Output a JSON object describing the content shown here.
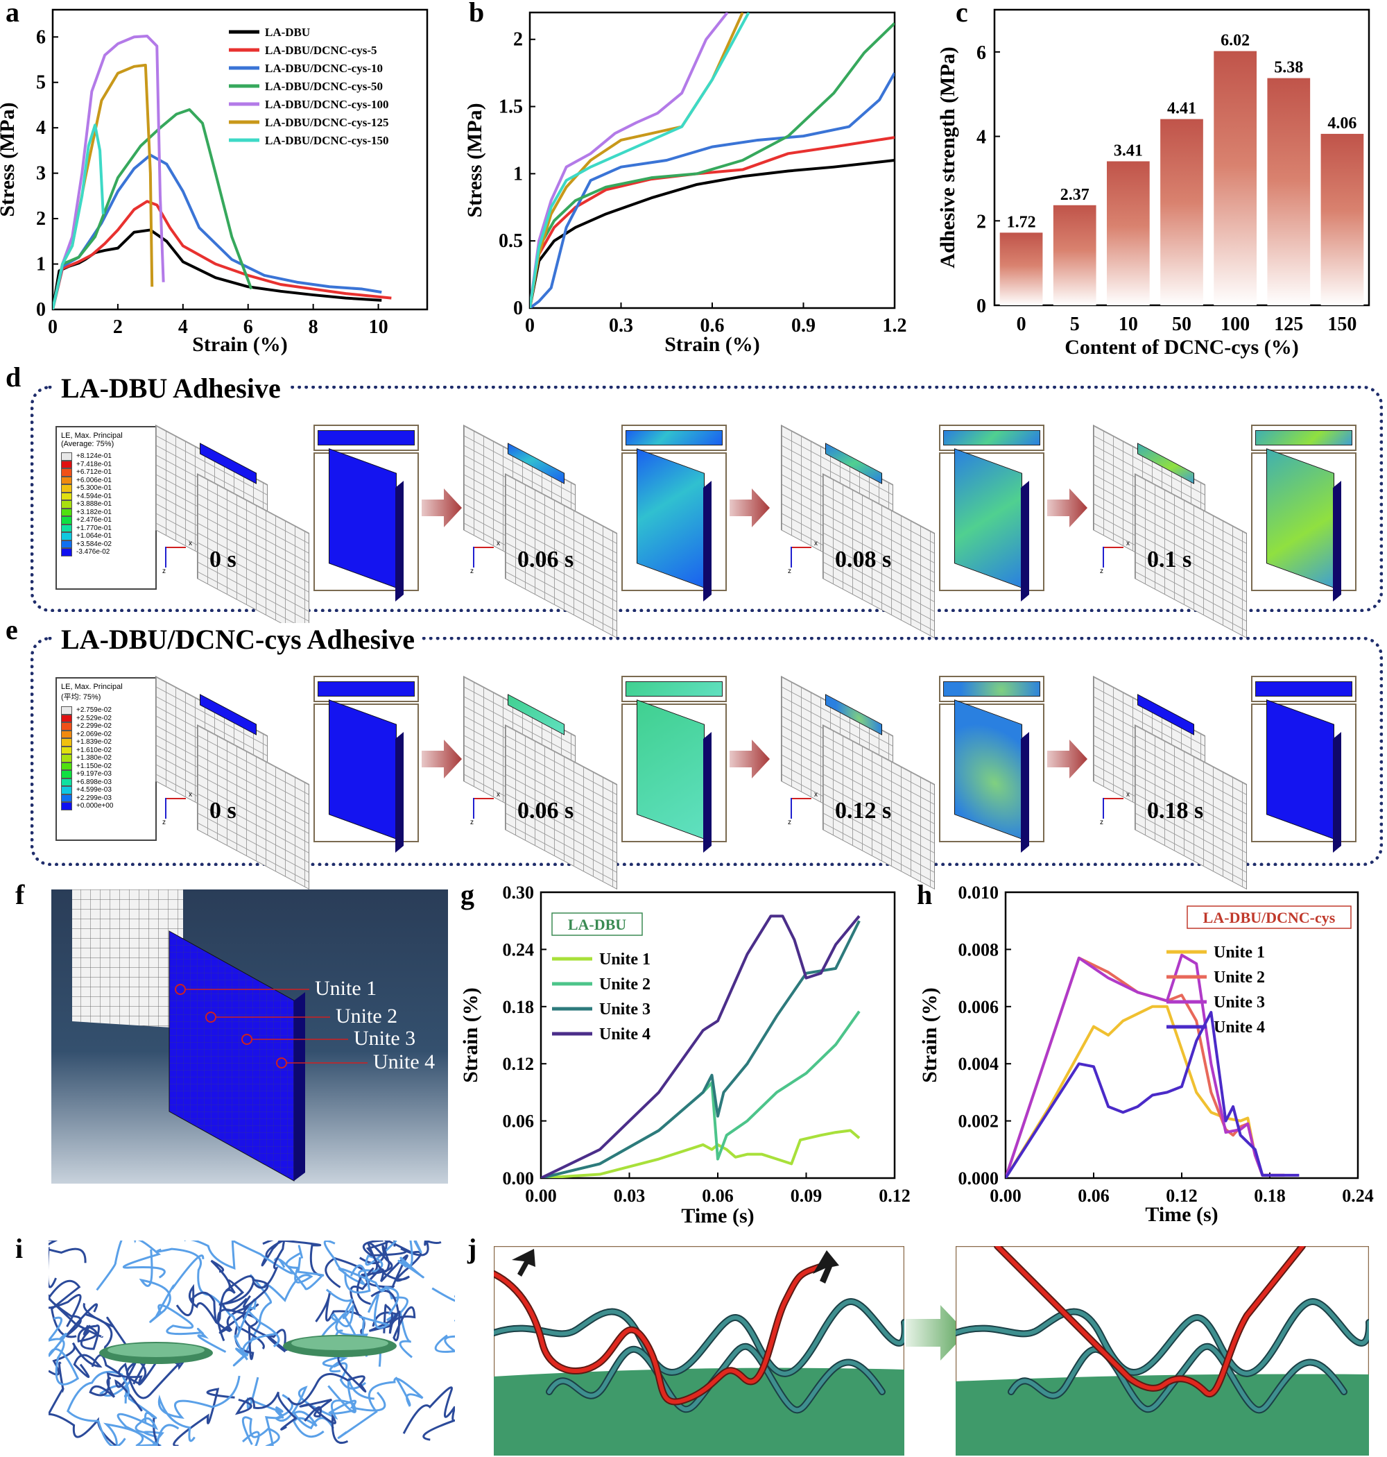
{
  "panel_labels": {
    "a": "a",
    "b": "b",
    "c": "c",
    "d": "d",
    "e": "e",
    "f": "f",
    "g": "g",
    "h": "h",
    "i": "i",
    "j": "j"
  },
  "chart_data": [
    {
      "id": "a",
      "type": "line",
      "xlabel": "Strain (%)",
      "ylabel": "Stress (MPa)",
      "xlim": [
        0,
        11.5
      ],
      "ylim": [
        0,
        6.6
      ],
      "xticks": [
        0,
        2,
        4,
        6,
        8,
        10
      ],
      "yticks": [
        0,
        1,
        2,
        3,
        4,
        5,
        6
      ],
      "legend_position": "top-right",
      "series": [
        {
          "name": "LA-DBU",
          "color": "#000000",
          "x": [
            0,
            0.2,
            0.5,
            0.8,
            1.0,
            1.3,
            1.6,
            2.0,
            2.5,
            3.0,
            3.5,
            4.0,
            5.0,
            6.0,
            7.0,
            8.0,
            9.0,
            10.1
          ],
          "y": [
            0,
            0.85,
            0.95,
            1.02,
            1.1,
            1.25,
            1.3,
            1.35,
            1.7,
            1.75,
            1.5,
            1.05,
            0.7,
            0.5,
            0.4,
            0.32,
            0.25,
            0.2
          ]
        },
        {
          "name": "LA-DBU/DCNC-cys-5",
          "color": "#e8312f",
          "x": [
            0,
            0.3,
            0.8,
            1.2,
            1.6,
            2.0,
            2.5,
            2.9,
            3.2,
            3.6,
            4.0,
            5.0,
            6.0,
            7.0,
            8.0,
            9.0,
            10.4
          ],
          "y": [
            0,
            0.9,
            1.05,
            1.2,
            1.45,
            1.75,
            2.2,
            2.38,
            2.3,
            1.8,
            1.4,
            1.0,
            0.75,
            0.55,
            0.45,
            0.35,
            0.25
          ]
        },
        {
          "name": "LA-DBU/DCNC-cys-10",
          "color": "#3a74d6",
          "x": [
            0,
            0.3,
            0.8,
            1.5,
            2.0,
            2.5,
            3.0,
            3.5,
            4.0,
            4.5,
            5.5,
            6.5,
            7.5,
            8.5,
            9.5,
            10.1
          ],
          "y": [
            0,
            0.95,
            1.15,
            1.9,
            2.6,
            3.1,
            3.4,
            3.2,
            2.6,
            1.8,
            1.1,
            0.75,
            0.6,
            0.5,
            0.45,
            0.38
          ]
        },
        {
          "name": "LA-DBU/DCNC-cys-50",
          "color": "#36a85c",
          "x": [
            0,
            0.3,
            0.8,
            1.3,
            2.0,
            2.7,
            3.3,
            3.8,
            4.2,
            4.6,
            5.0,
            5.5,
            6.1
          ],
          "y": [
            0,
            1.0,
            1.15,
            1.6,
            2.9,
            3.6,
            4.0,
            4.3,
            4.4,
            4.1,
            3.0,
            1.6,
            0.45
          ]
        },
        {
          "name": "LA-DBU/DCNC-cys-100",
          "color": "#b37ae8",
          "x": [
            0,
            0.3,
            0.6,
            0.9,
            1.2,
            1.6,
            2.0,
            2.5,
            2.9,
            3.2,
            3.3,
            3.4
          ],
          "y": [
            0,
            1.0,
            1.6,
            3.0,
            4.8,
            5.6,
            5.85,
            6.0,
            6.02,
            5.8,
            2.5,
            0.6
          ]
        },
        {
          "name": "LA-DBU/DCNC-cys-125",
          "color": "#c8981a",
          "x": [
            0,
            0.3,
            0.6,
            1.0,
            1.5,
            2.0,
            2.5,
            2.85,
            3.0,
            3.05
          ],
          "y": [
            0,
            1.0,
            1.4,
            2.9,
            4.6,
            5.2,
            5.35,
            5.38,
            3.0,
            0.5
          ]
        },
        {
          "name": "LA-DBU/DCNC-cys-150",
          "color": "#3dd9c6",
          "x": [
            0,
            0.3,
            0.6,
            0.9,
            1.1,
            1.3,
            1.45,
            1.55
          ],
          "y": [
            0,
            1.0,
            1.4,
            2.5,
            3.6,
            4.06,
            3.5,
            2.1
          ]
        }
      ]
    },
    {
      "id": "b",
      "type": "line",
      "xlabel": "Strain (%)",
      "ylabel": "Stress (MPa)",
      "xlim": [
        0,
        1.2
      ],
      "ylim": [
        0,
        2.2
      ],
      "xticks": [
        0.0,
        0.3,
        0.6,
        0.9,
        1.2
      ],
      "yticks": [
        0.0,
        0.5,
        1.0,
        1.5,
        2.0
      ],
      "series": [
        {
          "name": "LA-DBU",
          "color": "#000000",
          "x": [
            0,
            0.03,
            0.08,
            0.15,
            0.25,
            0.4,
            0.55,
            0.7,
            0.85,
            1.0,
            1.2
          ],
          "y": [
            0,
            0.35,
            0.5,
            0.6,
            0.7,
            0.82,
            0.92,
            0.98,
            1.02,
            1.05,
            1.1
          ]
        },
        {
          "name": "LA-DBU/DCNC-cys-5",
          "color": "#e8312f",
          "x": [
            0,
            0.03,
            0.08,
            0.15,
            0.25,
            0.4,
            0.55,
            0.7,
            0.85,
            1.0,
            1.2
          ],
          "y": [
            0,
            0.4,
            0.6,
            0.75,
            0.88,
            0.96,
            1.0,
            1.03,
            1.15,
            1.2,
            1.27
          ]
        },
        {
          "name": "LA-DBU/DCNC-cys-10",
          "color": "#3a74d6",
          "x": [
            0,
            0.03,
            0.07,
            0.12,
            0.2,
            0.3,
            0.45,
            0.6,
            0.75,
            0.9,
            1.05,
            1.15,
            1.2
          ],
          "y": [
            0,
            0.05,
            0.15,
            0.6,
            0.95,
            1.05,
            1.1,
            1.2,
            1.25,
            1.28,
            1.35,
            1.55,
            1.75
          ]
        },
        {
          "name": "LA-DBU/DCNC-cys-50",
          "color": "#36a85c",
          "x": [
            0,
            0.03,
            0.08,
            0.15,
            0.25,
            0.4,
            0.55,
            0.7,
            0.85,
            1.0,
            1.1,
            1.2
          ],
          "y": [
            0,
            0.45,
            0.65,
            0.8,
            0.9,
            0.97,
            1.0,
            1.1,
            1.28,
            1.6,
            1.9,
            2.12
          ]
        },
        {
          "name": "LA-DBU/DCNC-cys-100",
          "color": "#b37ae8",
          "x": [
            0,
            0.03,
            0.07,
            0.12,
            0.2,
            0.28,
            0.35,
            0.42,
            0.5,
            0.58,
            0.65
          ],
          "y": [
            0,
            0.5,
            0.8,
            1.05,
            1.15,
            1.3,
            1.38,
            1.45,
            1.6,
            2.0,
            2.2
          ]
        },
        {
          "name": "LA-DBU/DCNC-cys-125",
          "color": "#c8981a",
          "x": [
            0,
            0.03,
            0.07,
            0.12,
            0.2,
            0.3,
            0.4,
            0.5,
            0.6,
            0.7
          ],
          "y": [
            0,
            0.4,
            0.7,
            0.9,
            1.1,
            1.25,
            1.3,
            1.35,
            1.7,
            2.2
          ]
        },
        {
          "name": "LA-DBU/DCNC-cys-150",
          "color": "#3dd9c6",
          "x": [
            0,
            0.03,
            0.07,
            0.12,
            0.2,
            0.3,
            0.4,
            0.5,
            0.6,
            0.72
          ],
          "y": [
            0,
            0.45,
            0.75,
            0.95,
            1.05,
            1.15,
            1.25,
            1.35,
            1.7,
            2.2
          ]
        }
      ]
    },
    {
      "id": "c",
      "type": "bar",
      "xlabel": "Content of DCNC-cys (%)",
      "ylabel": "Adhesive strength (MPa)",
      "categories": [
        "0",
        "5",
        "10",
        "50",
        "100",
        "125",
        "150"
      ],
      "values": [
        1.72,
        2.37,
        3.41,
        4.41,
        6.02,
        5.38,
        4.06
      ],
      "value_labels": [
        "1.72",
        "2.37",
        "3.41",
        "4.41",
        "6.02",
        "5.38",
        "4.06"
      ],
      "ylim": [
        0,
        7
      ],
      "yticks": [
        0,
        2,
        4,
        6
      ],
      "bar_color": "#c0544a"
    },
    {
      "id": "g",
      "type": "line",
      "legend_title": "LA-DBU",
      "legend_title_color": "#3a8a52",
      "xlabel": "Time (s)",
      "ylabel": "Strain (%)",
      "xlim": [
        0,
        0.12
      ],
      "ylim": [
        0,
        0.3
      ],
      "xticks": [
        "0.00",
        "0.03",
        "0.06",
        "0.09",
        "0.12"
      ],
      "xtick_values": [
        0,
        0.03,
        0.06,
        0.09,
        0.12
      ],
      "yticks": [
        "0.00",
        "0.06",
        "0.12",
        "0.18",
        "0.24",
        "0.30"
      ],
      "ytick_values": [
        0,
        0.06,
        0.12,
        0.18,
        0.24,
        0.3
      ],
      "series": [
        {
          "name": "Unite 1",
          "color": "#a8e03a",
          "x": [
            0,
            0.02,
            0.04,
            0.055,
            0.058,
            0.06,
            0.063,
            0.066,
            0.07,
            0.075,
            0.08,
            0.085,
            0.088,
            0.095,
            0.1,
            0.105,
            0.108
          ],
          "y": [
            0,
            0.004,
            0.02,
            0.035,
            0.03,
            0.035,
            0.03,
            0.022,
            0.025,
            0.025,
            0.02,
            0.015,
            0.04,
            0.045,
            0.048,
            0.05,
            0.042
          ]
        },
        {
          "name": "Unite 2",
          "color": "#4cc48a",
          "x": [
            0,
            0.02,
            0.04,
            0.055,
            0.058,
            0.06,
            0.063,
            0.07,
            0.08,
            0.085,
            0.09,
            0.1,
            0.108
          ],
          "y": [
            0,
            0.015,
            0.05,
            0.09,
            0.1,
            0.02,
            0.045,
            0.06,
            0.09,
            0.1,
            0.11,
            0.14,
            0.175
          ]
        },
        {
          "name": "Unite 3",
          "color": "#2d7a7c",
          "x": [
            0,
            0.02,
            0.04,
            0.055,
            0.058,
            0.06,
            0.062,
            0.07,
            0.08,
            0.09,
            0.1,
            0.108
          ],
          "y": [
            0,
            0.015,
            0.05,
            0.09,
            0.108,
            0.065,
            0.09,
            0.12,
            0.17,
            0.215,
            0.22,
            0.27
          ]
        },
        {
          "name": "Unite 4",
          "color": "#4b2e8a",
          "x": [
            0,
            0.02,
            0.04,
            0.055,
            0.06,
            0.065,
            0.07,
            0.078,
            0.082,
            0.086,
            0.09,
            0.095,
            0.1,
            0.108
          ],
          "y": [
            0,
            0.03,
            0.09,
            0.155,
            0.165,
            0.2,
            0.235,
            0.275,
            0.275,
            0.25,
            0.21,
            0.215,
            0.245,
            0.275
          ]
        }
      ]
    },
    {
      "id": "h",
      "type": "line",
      "legend_title": "LA-DBU/DCNC-cys",
      "legend_title_color": "#c0392b",
      "xlabel": "Time (s)",
      "ylabel": "Strain (%)",
      "xlim": [
        0,
        0.24
      ],
      "ylim": [
        0,
        0.01
      ],
      "xticks": [
        "0.00",
        "0.06",
        "0.12",
        "0.18",
        "0.24"
      ],
      "xtick_values": [
        0,
        0.06,
        0.12,
        0.18,
        0.24
      ],
      "yticks": [
        "0.000",
        "0.002",
        "0.004",
        "0.006",
        "0.008",
        "0.010"
      ],
      "ytick_values": [
        0,
        0.002,
        0.004,
        0.006,
        0.008,
        0.01
      ],
      "series": [
        {
          "name": "Unite 1",
          "color": "#f0c030",
          "x": [
            0,
            0.03,
            0.06,
            0.07,
            0.08,
            0.1,
            0.11,
            0.12,
            0.13,
            0.14,
            0.15,
            0.16,
            0.165,
            0.17,
            0.175,
            0.19
          ],
          "y": [
            0,
            0.0025,
            0.0053,
            0.005,
            0.0055,
            0.006,
            0.006,
            0.0045,
            0.003,
            0.0023,
            0.0021,
            0.002,
            0.0021,
            0.0008,
            0.0001,
            0.0001
          ]
        },
        {
          "name": "Unite 2",
          "color": "#e8685a",
          "x": [
            0,
            0.05,
            0.07,
            0.09,
            0.11,
            0.12,
            0.13,
            0.14,
            0.15,
            0.155,
            0.16,
            0.165,
            0.17,
            0.175,
            0.19
          ],
          "y": [
            0,
            0.0077,
            0.0072,
            0.0065,
            0.0062,
            0.0064,
            0.0055,
            0.003,
            0.0017,
            0.0015,
            0.0018,
            0.0019,
            0.0008,
            0.0001,
            0.0001
          ]
        },
        {
          "name": "Unite 3",
          "color": "#b03ac8",
          "x": [
            0,
            0.05,
            0.07,
            0.09,
            0.11,
            0.12,
            0.13,
            0.14,
            0.15,
            0.16,
            0.165,
            0.17,
            0.175,
            0.19
          ],
          "y": [
            0,
            0.0077,
            0.007,
            0.0065,
            0.0062,
            0.0078,
            0.0075,
            0.004,
            0.0016,
            0.0017,
            0.0019,
            0.0008,
            0.0001,
            0.0001
          ]
        },
        {
          "name": "Unite 4",
          "color": "#4a2ac8",
          "x": [
            0,
            0.05,
            0.06,
            0.07,
            0.08,
            0.09,
            0.1,
            0.11,
            0.12,
            0.13,
            0.14,
            0.15,
            0.155,
            0.16,
            0.17,
            0.175,
            0.2
          ],
          "y": [
            0,
            0.004,
            0.0039,
            0.0025,
            0.0023,
            0.0025,
            0.0029,
            0.003,
            0.0032,
            0.0048,
            0.0058,
            0.002,
            0.0025,
            0.0015,
            0.001,
            0.0001,
            0.0001
          ]
        }
      ]
    }
  ],
  "panel_d": {
    "title": "LA-DBU Adhesive",
    "legend": {
      "header": [
        "LE, Max. Principal",
        "(Average: 75%)"
      ],
      "values": [
        "+8.124e-01",
        "+7.418e-01",
        "+6.712e-01",
        "+6.006e-01",
        "+5.300e-01",
        "+4.594e-01",
        "+3.888e-01",
        "+3.182e-01",
        "+2.476e-01",
        "+1.770e-01",
        "+1.064e-01",
        "+3.584e-02",
        "-3.476e-02"
      ]
    },
    "times": [
      "0 s",
      "0.06 s",
      "0.08 s",
      "0.1 s"
    ]
  },
  "panel_e": {
    "title": "LA-DBU/DCNC-cys Adhesive",
    "legend": {
      "header": [
        "LE, Max. Principal",
        "(平均: 75%)"
      ],
      "values": [
        "+2.759e-02",
        "+2.529e-02",
        "+2.299e-02",
        "+2.069e-02",
        "+1.839e-02",
        "+1.610e-02",
        "+1.380e-02",
        "+1.150e-02",
        "+9.197e-03",
        "+6.898e-03",
        "+4.599e-03",
        "+2.299e-03",
        "+0.000e+00"
      ]
    },
    "times": [
      "0 s",
      "0.06 s",
      "0.12 s",
      "0.18 s"
    ]
  },
  "axis_letters": {
    "x": "x",
    "z": "z"
  },
  "panel_f": {
    "labels": [
      "Unite 1",
      "Unite 2",
      "Unite 3",
      "Unite 4"
    ]
  },
  "colors": {
    "frame_blue": "#1f2d6b",
    "arrow_red": "#a83a3a",
    "green_surface": "#3f9a6a",
    "chain_teal": "#2f7a7a",
    "chain_red": "#d8261c",
    "network_blue": "#3a6fc4"
  }
}
